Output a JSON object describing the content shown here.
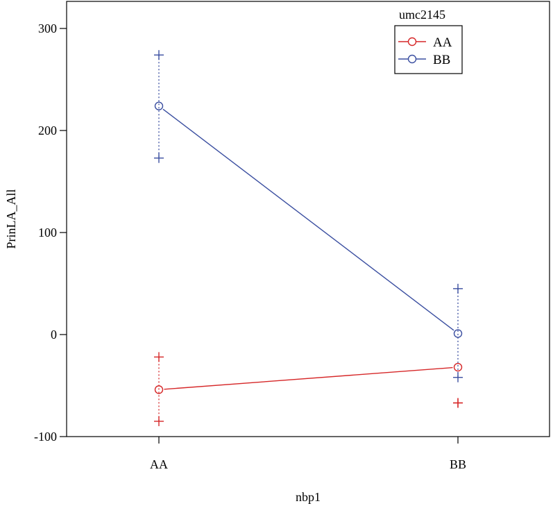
{
  "chart_data": {
    "type": "line",
    "title": "",
    "xlabel": "nbp1",
    "ylabel": "PrinLA_All",
    "categories": [
      "AA",
      "BB"
    ],
    "ylim": [
      -100,
      300
    ],
    "yticks": [
      -100,
      0,
      100,
      200,
      300
    ],
    "grid": false,
    "legend": {
      "title": "umc2145",
      "placement": "top-right"
    },
    "series": [
      {
        "name": "AA",
        "color": "#d62728",
        "values": [
          -54,
          -32
        ],
        "upper": [
          -22,
          -67
        ],
        "lower": [
          -85,
          -67
        ]
      },
      {
        "name": "BB",
        "color": "#3a4ea0",
        "values": [
          224,
          1
        ],
        "upper": [
          274,
          45
        ],
        "lower": [
          173,
          -42
        ]
      }
    ]
  }
}
